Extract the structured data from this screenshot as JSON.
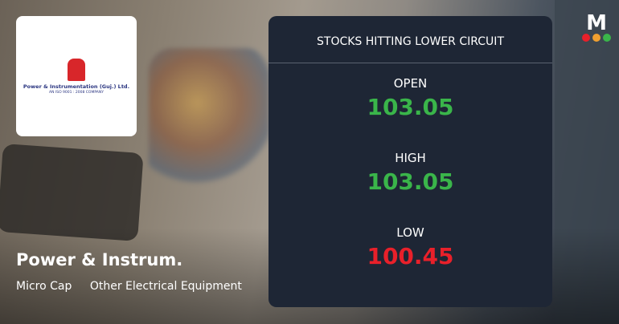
{
  "logo": {
    "name": "Power & Instrumentation (Guj.) Ltd.",
    "subtitle": "AN ISO 9001 : 2008 COMPANY"
  },
  "company": {
    "name": "Power & Instrum.",
    "cap": "Micro Cap",
    "sector": "Other Electrical Equipment"
  },
  "panel": {
    "title": "STOCKS HITTING LOWER CIRCUIT",
    "open_label": "OPEN",
    "open": "103.05",
    "high_label": "HIGH",
    "high": "103.05",
    "low_label": "LOW",
    "low": "100.45"
  },
  "brand": {
    "letter": "M",
    "dot_colors": [
      "#e8202a",
      "#f0a030",
      "#3ab54a"
    ]
  },
  "colors": {
    "positive": "#3ab54a",
    "negative": "#e8202a",
    "panel": "#1e2635"
  }
}
